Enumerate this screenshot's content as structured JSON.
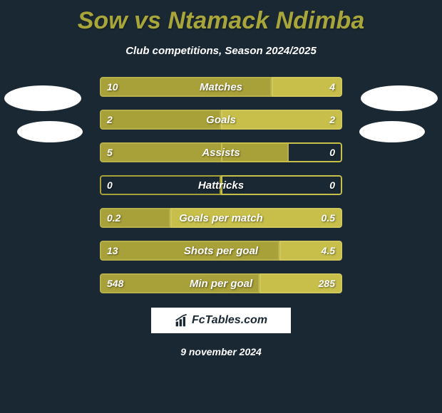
{
  "title": "Sow vs Ntamack Ndimba",
  "subtitle": "Club competitions, Season 2024/2025",
  "date": "9 november 2024",
  "logo_text": "FcTables.com",
  "colors": {
    "background": "#1a2833",
    "title_color": "#a8a63a",
    "bar_left": "#a8a039",
    "bar_left_border": "#b8b04a",
    "bar_right": "#c7bf4a",
    "bar_right_border": "#d0c85a",
    "text": "#ffffff"
  },
  "stats": [
    {
      "label": "Matches",
      "left_val": "10",
      "right_val": "4",
      "left_pct": 71,
      "right_pct": 29
    },
    {
      "label": "Goals",
      "left_val": "2",
      "right_val": "2",
      "left_pct": 50,
      "right_pct": 50
    },
    {
      "label": "Assists",
      "left_val": "5",
      "right_val": "0",
      "left_pct": 78,
      "right_pct": 4
    },
    {
      "label": "Hattricks",
      "left_val": "0",
      "right_val": "0",
      "left_pct": 4,
      "right_pct": 4
    },
    {
      "label": "Goals per match",
      "left_val": "0.2",
      "right_val": "0.5",
      "left_pct": 29,
      "right_pct": 71
    },
    {
      "label": "Shots per goal",
      "left_val": "13",
      "right_val": "4.5",
      "left_pct": 74,
      "right_pct": 26
    },
    {
      "label": "Min per goal",
      "left_val": "548",
      "right_val": "285",
      "left_pct": 66,
      "right_pct": 34
    }
  ]
}
